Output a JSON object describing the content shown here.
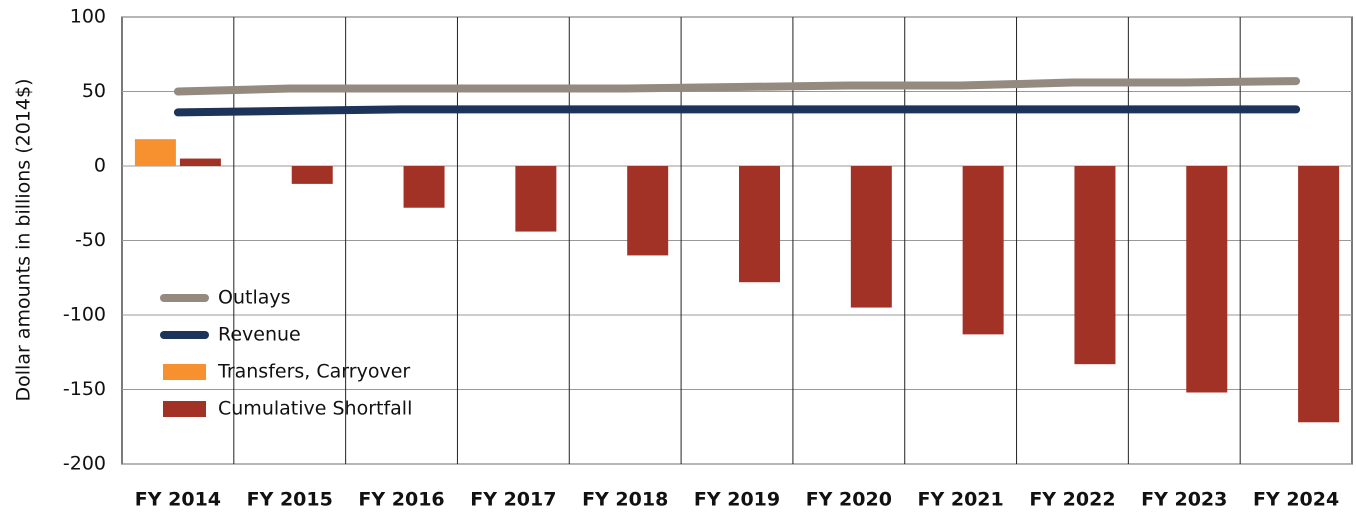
{
  "chart_data": {
    "type": "combo",
    "y_label": "Dollar amounts in billions (2014$)",
    "categories": [
      "FY 2014",
      "FY 2015",
      "FY 2016",
      "FY 2017",
      "FY 2018",
      "FY 2019",
      "FY 2020",
      "FY 2021",
      "FY 2022",
      "FY 2023",
      "FY 2024"
    ],
    "series": [
      {
        "name": "Outlays",
        "type": "line",
        "color": "#948a80",
        "values": [
          50,
          52,
          52,
          52,
          52,
          53,
          54,
          54,
          56,
          56,
          57
        ]
      },
      {
        "name": "Revenue",
        "type": "line",
        "color": "#1c3459",
        "values": [
          36,
          37,
          38,
          38,
          38,
          38,
          38,
          38,
          38,
          38,
          38
        ]
      },
      {
        "name": "Transfers, Carryover",
        "type": "bar",
        "color": "#f7902f",
        "values": [
          18,
          null,
          null,
          null,
          null,
          null,
          null,
          null,
          null,
          null,
          null
        ]
      },
      {
        "name": "Cumulative Shortfall",
        "type": "bar",
        "color": "#a33226",
        "values": [
          5,
          -12,
          -28,
          -44,
          -60,
          -78,
          -95,
          -113,
          -133,
          -152,
          -172
        ]
      }
    ],
    "ylim": [
      -200,
      100
    ],
    "yticks": [
      -200,
      -150,
      -100,
      -50,
      0,
      50,
      100
    ],
    "grid": true,
    "legend": "lower left"
  }
}
